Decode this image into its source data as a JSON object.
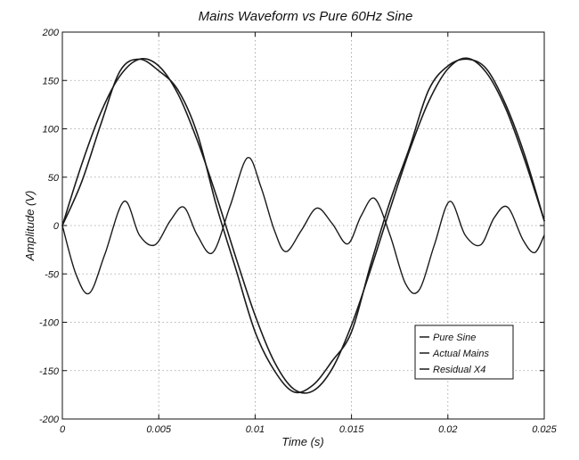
{
  "chart_data": {
    "type": "line",
    "title": "Mains Waveform vs Pure 60Hz Sine",
    "xlabel": "Time (s)",
    "ylabel": "Amplitude (V)",
    "xlim": [
      0,
      0.025
    ],
    "ylim": [
      -200,
      200
    ],
    "x_ticks": [
      0,
      0.005,
      0.01,
      0.015,
      0.02,
      0.025
    ],
    "x_tick_labels": [
      "0",
      "0.005",
      "0.01",
      "0.015",
      "0.02",
      "0.025"
    ],
    "y_ticks": [
      -200,
      -150,
      -100,
      -50,
      0,
      50,
      100,
      150,
      200
    ],
    "y_tick_labels": [
      "-200",
      "-150",
      "-100",
      "-50",
      "0",
      "50",
      "100",
      "150",
      "200"
    ],
    "grid": true,
    "legend_position": "bottom-right",
    "colors": {
      "line": "#1a1a1a",
      "grid": "#9a9a9a",
      "frame": "#111111"
    },
    "series": [
      {
        "name": "Pure Sine",
        "x": [
          0,
          0.001,
          0.002,
          0.003,
          0.004,
          0.005,
          0.006,
          0.007,
          0.008,
          0.009,
          0.01,
          0.011,
          0.012,
          0.013,
          0.014,
          0.015,
          0.016,
          0.017,
          0.018,
          0.019,
          0.02,
          0.021,
          0.022,
          0.023,
          0.024,
          0.025
        ],
        "values": [
          0,
          63,
          117,
          155,
          172,
          165,
          136,
          88,
          30,
          -33,
          -93,
          -141,
          -169,
          -171,
          -148,
          -103,
          -45,
          17,
          77,
          128,
          162,
          173,
          158,
          121,
          67,
          5
        ]
      },
      {
        "name": "Actual Mains",
        "x": [
          0,
          0.001,
          0.002,
          0.003,
          0.004,
          0.005,
          0.006,
          0.007,
          0.008,
          0.009,
          0.01,
          0.011,
          0.012,
          0.013,
          0.014,
          0.015,
          0.016,
          0.017,
          0.018,
          0.019,
          0.02,
          0.021,
          0.022,
          0.023,
          0.024,
          0.025
        ],
        "values": [
          0,
          45,
          105,
          160,
          172,
          160,
          140,
          95,
          20,
          -45,
          -110,
          -150,
          -172,
          -165,
          -140,
          -110,
          -40,
          25,
          80,
          140,
          165,
          172,
          162,
          125,
          72,
          5
        ]
      },
      {
        "name": "Residual X4",
        "x": [
          0,
          0.0007,
          0.0014,
          0.0022,
          0.0032,
          0.004,
          0.0048,
          0.0056,
          0.0063,
          0.007,
          0.0078,
          0.0087,
          0.0096,
          0.0103,
          0.011,
          0.0116,
          0.0124,
          0.0132,
          0.014,
          0.0148,
          0.0155,
          0.0162,
          0.017,
          0.0178,
          0.0185,
          0.0193,
          0.0201,
          0.0209,
          0.0217,
          0.0224,
          0.0231,
          0.0239,
          0.0245,
          0.025
        ],
        "values": [
          0,
          -50,
          -70,
          -30,
          25,
          -10,
          -20,
          5,
          19,
          -10,
          -28,
          20,
          70,
          40,
          -5,
          -27,
          -5,
          18,
          2,
          -19,
          10,
          28,
          -10,
          -60,
          -67,
          -20,
          25,
          -10,
          -20,
          8,
          19,
          -15,
          -28,
          -10
        ]
      }
    ]
  }
}
